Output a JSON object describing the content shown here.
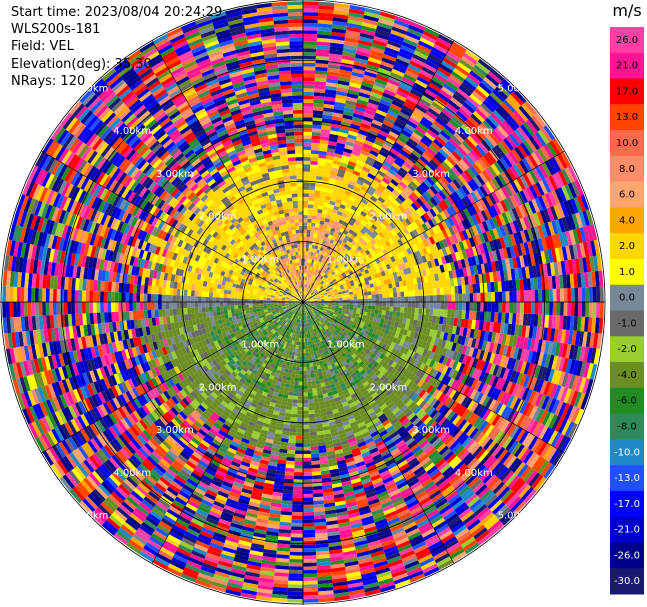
{
  "info": {
    "start_time": "Start time: 2023/08/04 20:24:29",
    "instrument": "WLS200s-181",
    "field": "Field: VEL",
    "elevation": "Elevation(deg): 35.30",
    "nrays": "NRays: 120"
  },
  "colorbar": {
    "unit": "m/s",
    "ticks": [
      "26.0",
      "21.0",
      "17.0",
      "13.0",
      "10.0",
      "8.0",
      "6.0",
      "4.0",
      "2.0",
      "1.0",
      "0.0",
      "-1.0",
      "-2.0",
      "-4.0",
      "-6.0",
      "-8.0",
      "-10.0",
      "-13.0",
      "-17.0",
      "-21.0",
      "-26.0",
      "-30.0"
    ],
    "bins": [
      {
        "from": 26,
        "to": 30,
        "color": "#ff3fa6"
      },
      {
        "from": 21,
        "to": 26,
        "color": "#ff1493"
      },
      {
        "from": 17,
        "to": 21,
        "color": "#ff0000"
      },
      {
        "from": 13,
        "to": 17,
        "color": "#ff4500"
      },
      {
        "from": 10,
        "to": 13,
        "color": "#fa6a4b"
      },
      {
        "from": 8,
        "to": 10,
        "color": "#ff8c69"
      },
      {
        "from": 6,
        "to": 8,
        "color": "#ffa56e"
      },
      {
        "from": 4,
        "to": 6,
        "color": "#ffa500"
      },
      {
        "from": 2,
        "to": 4,
        "color": "#ffd700"
      },
      {
        "from": 1,
        "to": 2,
        "color": "#ffff00"
      },
      {
        "from": 0,
        "to": 1,
        "color": "#778899"
      },
      {
        "from": -1,
        "to": 0,
        "color": "#696969"
      },
      {
        "from": -2,
        "to": -1,
        "color": "#9acd32"
      },
      {
        "from": -4,
        "to": -2,
        "color": "#6b8e23"
      },
      {
        "from": -6,
        "to": -4,
        "color": "#228b22"
      },
      {
        "from": -8,
        "to": -6,
        "color": "#2e8b57"
      },
      {
        "from": -10,
        "to": -8,
        "color": "#1e88c8"
      },
      {
        "from": -13,
        "to": -10,
        "color": "#1e50ff"
      },
      {
        "from": -17,
        "to": -13,
        "color": "#0000ff"
      },
      {
        "from": -21,
        "to": -17,
        "color": "#0000cd"
      },
      {
        "from": -26,
        "to": -21,
        "color": "#00008b"
      },
      {
        "from": -30,
        "to": -26,
        "color": "#191970"
      }
    ]
  },
  "chart_data": {
    "type": "heatmap",
    "projection": "polar PPI",
    "field": "VEL",
    "units": "m/s",
    "value_range": [
      -30,
      30
    ],
    "n_rays": 120,
    "range_km_max": 5.0,
    "range_rings_km": [
      1.0,
      2.0,
      3.0,
      4.0,
      5.0
    ],
    "ring_labels": [
      "1.00km",
      "2.00km",
      "3.00km",
      "4.00km",
      "5.00km"
    ],
    "pattern": {
      "near_range_km": 2.2,
      "approach_side": "upper half (receding velocities +1 to +10 m/s)",
      "retreat_side": "lower half (approaching velocities -1 to -8 m/s)",
      "far_range": "noise across full velocity range"
    }
  }
}
